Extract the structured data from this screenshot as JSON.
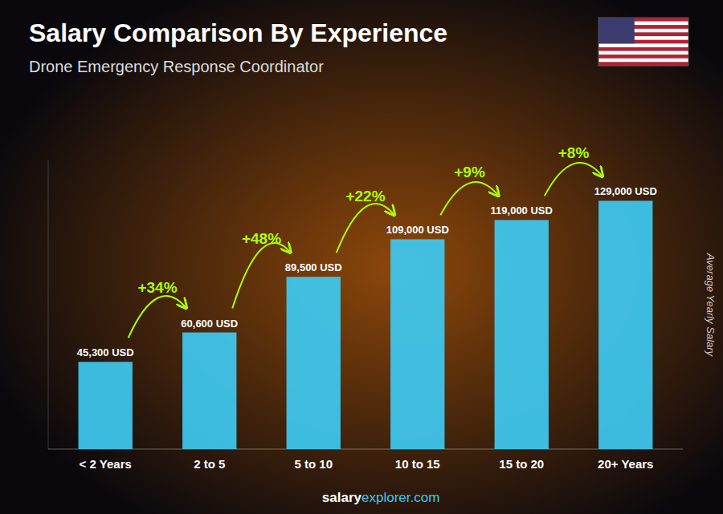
{
  "chart_data": {
    "type": "bar",
    "title": "Salary Comparison By Experience",
    "subtitle": "Drone Emergency Response Coordinator",
    "ylabel": "Average Yearly Salary",
    "categories": [
      "< 2 Years",
      "2 to 5",
      "5 to 10",
      "10 to 15",
      "15 to 20",
      "20+ Years"
    ],
    "values": [
      45300,
      60600,
      89500,
      109000,
      119000,
      129000
    ],
    "value_labels": [
      "45,300 USD",
      "60,600 USD",
      "89,500 USD",
      "109,000 USD",
      "119,000 USD",
      "129,000 USD"
    ],
    "data_labels": true,
    "annotations": [
      "+34%",
      "+48%",
      "+22%",
      "+9%",
      "+8%"
    ],
    "footer": [
      "salary",
      "explorer.com"
    ],
    "color": "#3EC8F0",
    "ylim": [
      0,
      150000
    ],
    "grid": false,
    "tick_labels": "x"
  }
}
